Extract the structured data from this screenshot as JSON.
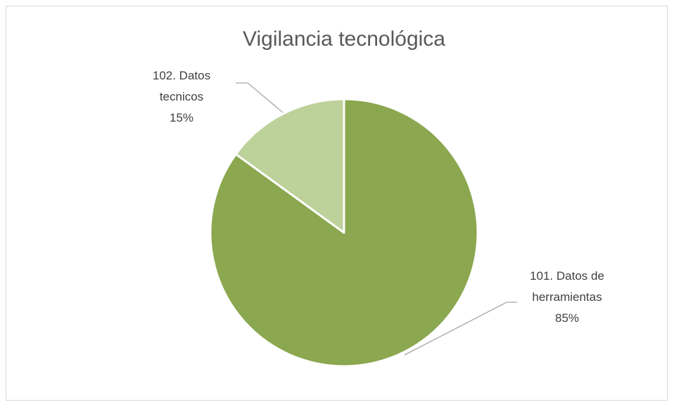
{
  "chart_data": {
    "type": "pie",
    "title": "Vigilancia tecnológica",
    "categories": [
      "101. Datos de herramientas",
      "102. Datos tecnicos"
    ],
    "values": [
      85,
      15
    ],
    "value_labels": [
      "85%",
      "15%"
    ],
    "colors": [
      "#8ba74f",
      "#bdd19a"
    ]
  }
}
